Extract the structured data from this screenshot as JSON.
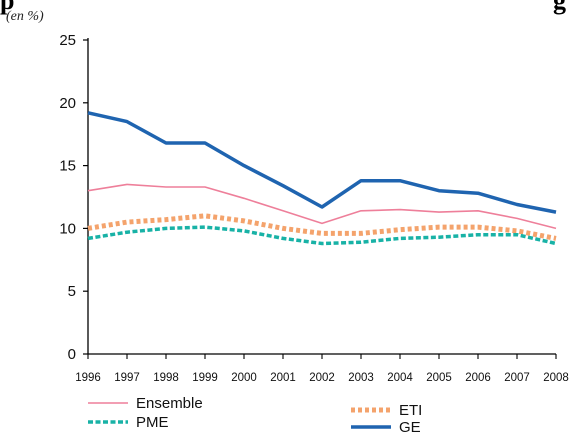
{
  "header": {
    "cut_text_left": "p",
    "cut_text_right": "g"
  },
  "chart_data": {
    "type": "line",
    "title": "",
    "unit": "(en %)",
    "xlabel": "",
    "ylabel": "",
    "x": [
      "1996",
      "1997",
      "1998",
      "1999",
      "2000",
      "2001",
      "2002",
      "2003",
      "2004",
      "2005",
      "2006",
      "2007",
      "2008"
    ],
    "ylim": [
      0,
      25
    ],
    "yticks": [
      0,
      5,
      10,
      15,
      20,
      25
    ],
    "grid": false,
    "legend_position": "bottom",
    "series": [
      {
        "name": "Ensemble",
        "color": "#ee7f9a",
        "style": "thin-solid",
        "values": [
          13.0,
          13.5,
          13.3,
          13.3,
          12.4,
          11.4,
          10.4,
          11.4,
          11.5,
          11.3,
          11.4,
          10.8,
          10.0
        ]
      },
      {
        "name": "ETI",
        "color": "#f4a36c",
        "style": "dotted",
        "values": [
          10.0,
          10.5,
          10.7,
          11.0,
          10.6,
          10.0,
          9.6,
          9.6,
          9.9,
          10.1,
          10.1,
          9.8,
          9.2
        ]
      },
      {
        "name": "PME",
        "color": "#18b2a6",
        "style": "dashed",
        "values": [
          9.2,
          9.7,
          10.0,
          10.1,
          9.8,
          9.2,
          8.8,
          8.9,
          9.2,
          9.3,
          9.5,
          9.5,
          8.8
        ]
      },
      {
        "name": "GE",
        "color": "#1f64b0",
        "style": "thick-solid",
        "values": [
          19.2,
          18.5,
          16.8,
          16.8,
          15.0,
          13.4,
          11.7,
          13.8,
          13.8,
          13.0,
          12.8,
          11.9,
          11.3
        ]
      }
    ]
  }
}
